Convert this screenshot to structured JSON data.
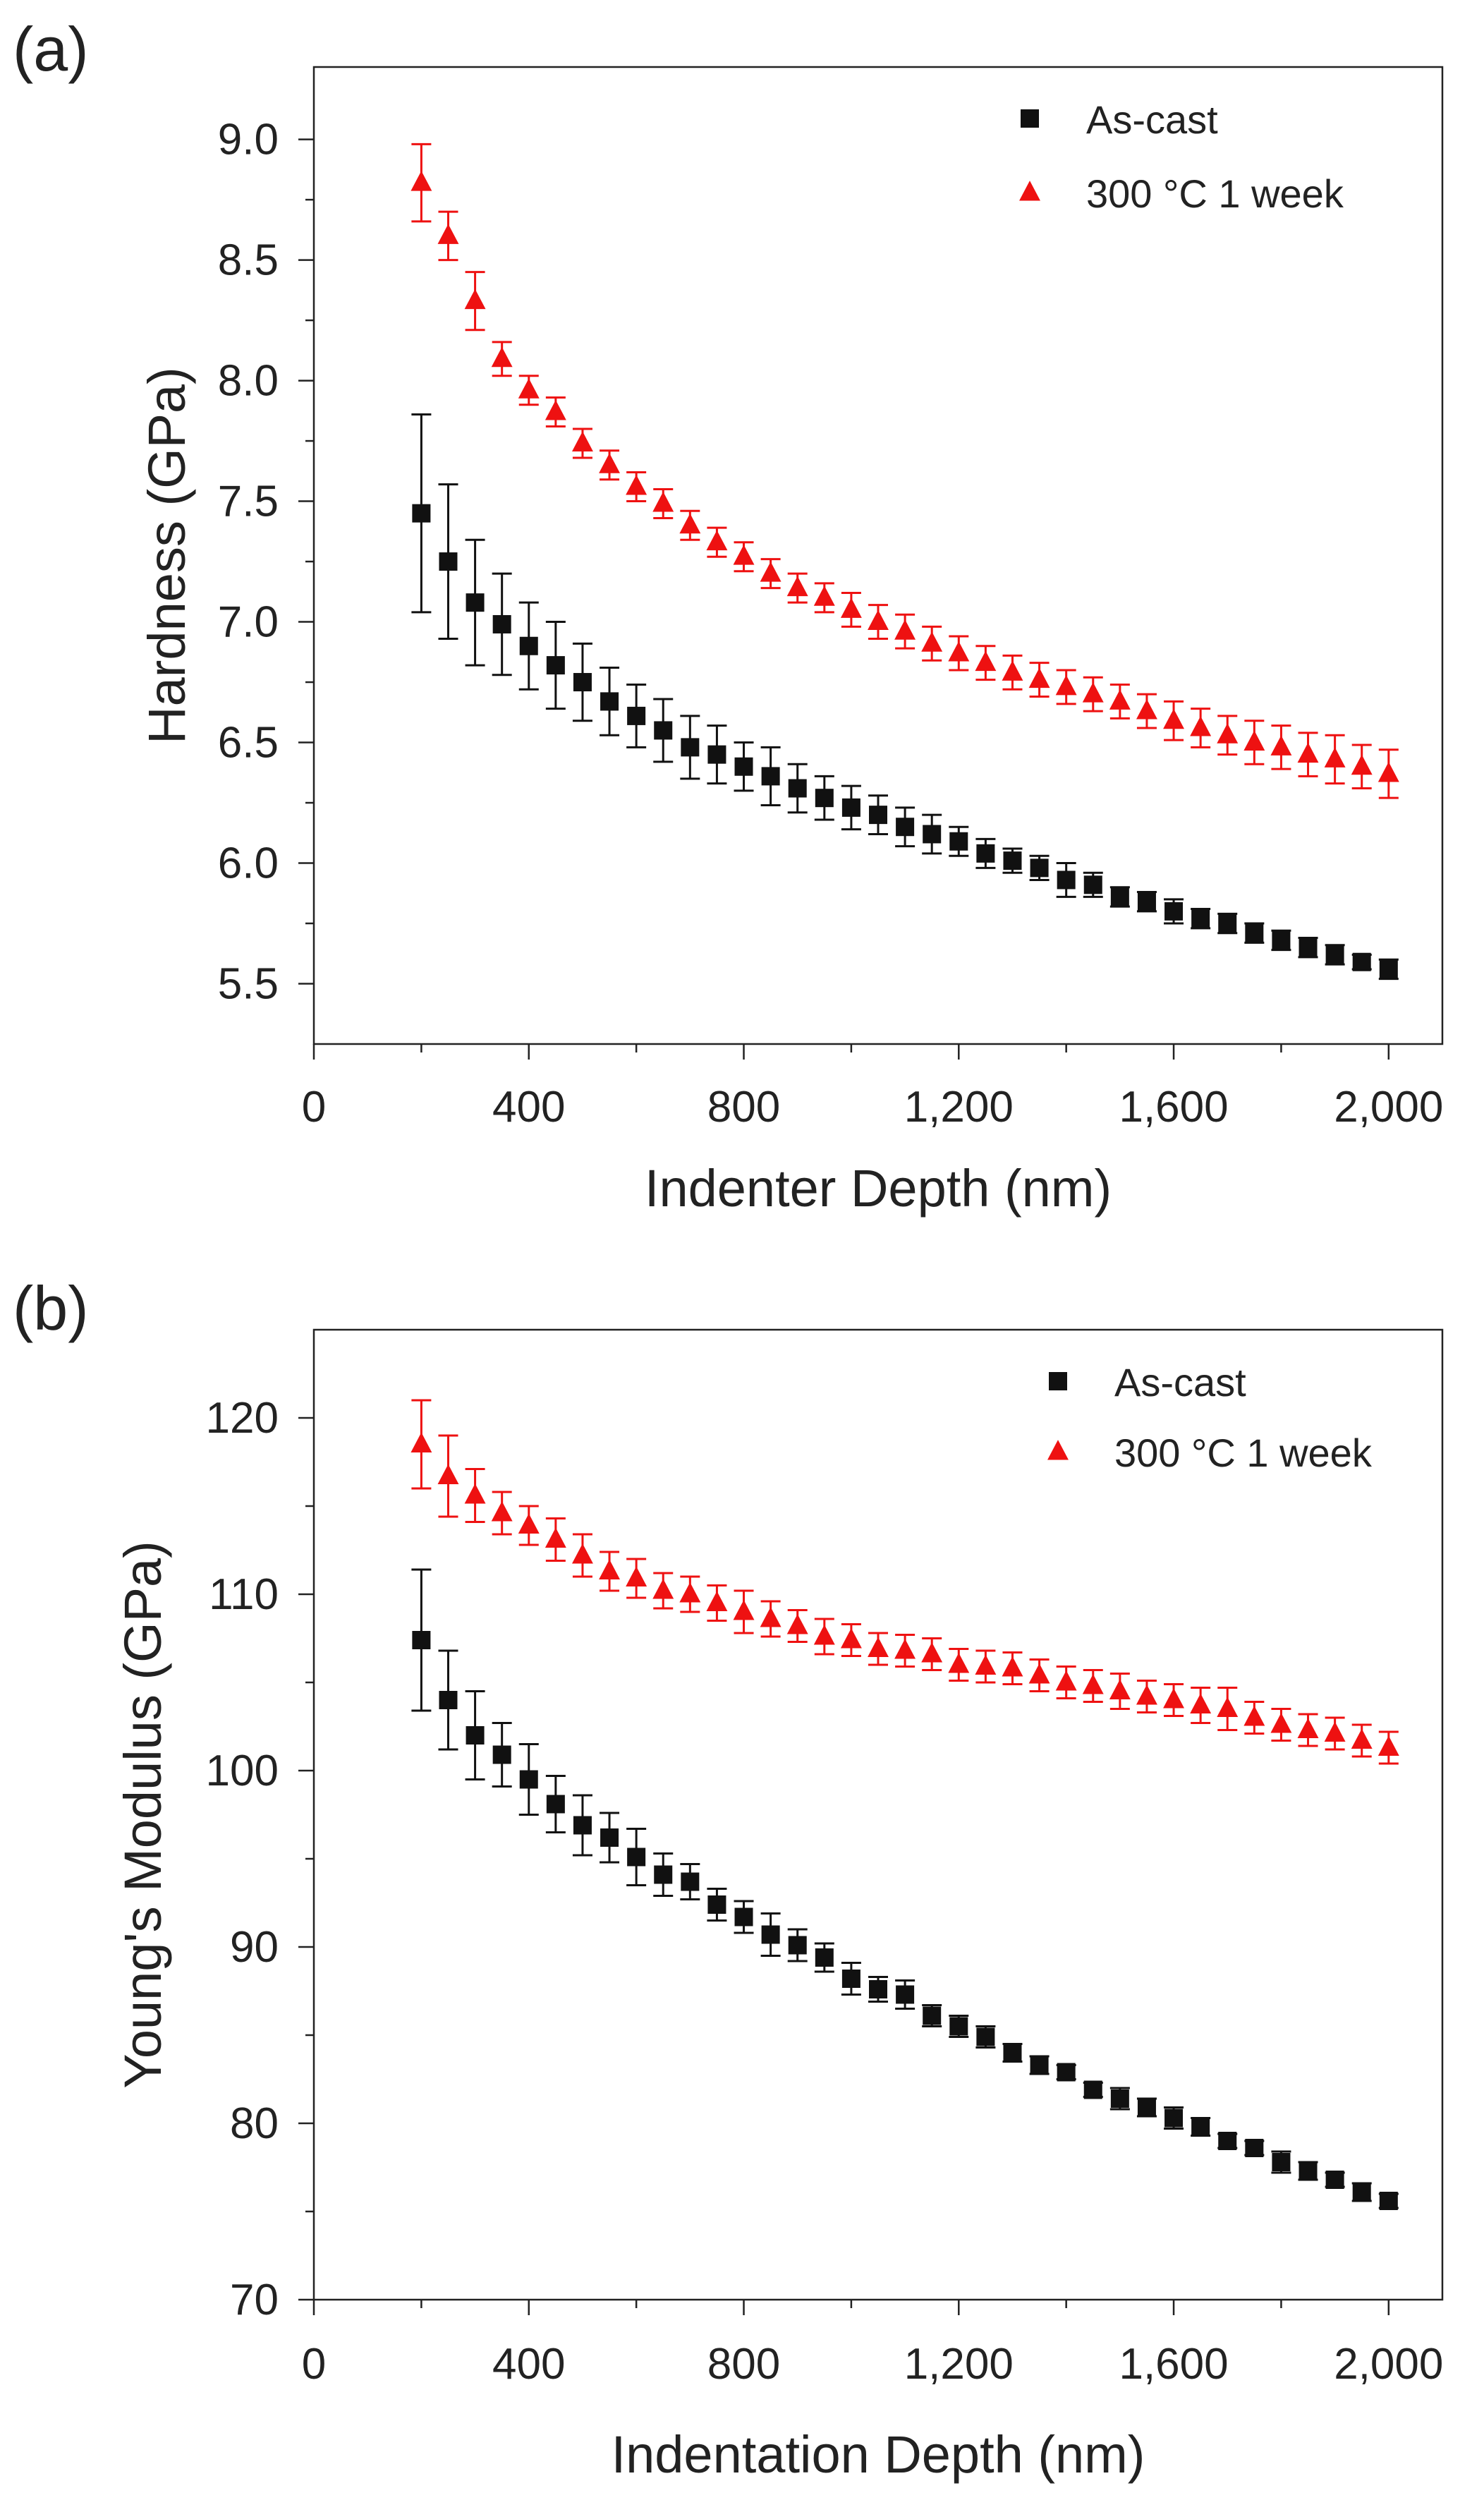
{
  "panel_labels": [
    "(a)",
    "(b)"
  ],
  "colors": {
    "as_cast": "#111111",
    "treated": "#ee1111"
  },
  "chart_data": [
    {
      "type": "scatter",
      "title": "",
      "xlabel": "Indenter Depth (nm)",
      "ylabel": "Hardness (GPa)",
      "xlim": [
        0,
        2100
      ],
      "ylim": [
        5.25,
        9.3
      ],
      "xticks": [
        0,
        400,
        800,
        1200,
        1600,
        2000
      ],
      "xtick_labels": [
        "0",
        "400",
        "800",
        "1,200",
        "1,600",
        "2,000"
      ],
      "yticks": [
        5.5,
        6.0,
        6.5,
        7.0,
        7.5,
        8.0,
        8.5,
        9.0
      ],
      "ytick_labels": [
        "5.5",
        "6.0",
        "6.5",
        "7.0",
        "7.5",
        "8.0",
        "8.5",
        "9.0"
      ],
      "legend_position": "top-right",
      "x": [
        200,
        250,
        300,
        350,
        400,
        450,
        500,
        550,
        600,
        650,
        700,
        750,
        800,
        850,
        900,
        950,
        1000,
        1050,
        1100,
        1150,
        1200,
        1250,
        1300,
        1350,
        1400,
        1450,
        1500,
        1550,
        1600,
        1650,
        1700,
        1750,
        1800,
        1850,
        1900,
        1950,
        2000
      ],
      "series": [
        {
          "name": "As-cast",
          "marker": "square",
          "values": [
            7.45,
            7.25,
            7.08,
            6.99,
            6.9,
            6.82,
            6.75,
            6.67,
            6.61,
            6.55,
            6.48,
            6.45,
            6.4,
            6.36,
            6.31,
            6.27,
            6.23,
            6.2,
            6.15,
            6.12,
            6.09,
            6.04,
            6.01,
            5.98,
            5.93,
            5.91,
            5.86,
            5.84,
            5.8,
            5.77,
            5.75,
            5.71,
            5.68,
            5.65,
            5.62,
            5.59,
            5.56
          ],
          "errors": [
            0.41,
            0.32,
            0.26,
            0.21,
            0.18,
            0.18,
            0.16,
            0.14,
            0.13,
            0.13,
            0.13,
            0.12,
            0.1,
            0.12,
            0.1,
            0.09,
            0.09,
            0.08,
            0.08,
            0.08,
            0.06,
            0.06,
            0.05,
            0.05,
            0.07,
            0.05,
            0.04,
            0.04,
            0.05,
            0.04,
            0.04,
            0.04,
            0.04,
            0.04,
            0.04,
            0.03,
            0.04
          ]
        },
        {
          "name": "300 °C 1 week",
          "marker": "triangle",
          "values": [
            8.82,
            8.6,
            8.33,
            8.09,
            7.96,
            7.87,
            7.74,
            7.65,
            7.56,
            7.49,
            7.4,
            7.33,
            7.27,
            7.2,
            7.14,
            7.1,
            7.05,
            7.0,
            6.96,
            6.91,
            6.87,
            6.83,
            6.79,
            6.76,
            6.73,
            6.7,
            6.67,
            6.63,
            6.59,
            6.56,
            6.53,
            6.5,
            6.48,
            6.45,
            6.43,
            6.4,
            6.37
          ]
        }
      ],
      "treated_errors": [
        0.16,
        0.1,
        0.12,
        0.07,
        0.06,
        0.06,
        0.06,
        0.06,
        0.06,
        0.06,
        0.06,
        0.06,
        0.06,
        0.06,
        0.06,
        0.06,
        0.07,
        0.07,
        0.07,
        0.07,
        0.07,
        0.07,
        0.07,
        0.07,
        0.07,
        0.07,
        0.07,
        0.07,
        0.08,
        0.08,
        0.08,
        0.09,
        0.09,
        0.09,
        0.1,
        0.09,
        0.1
      ]
    },
    {
      "type": "scatter",
      "title": "",
      "xlabel": "Indentation Depth (nm)",
      "ylabel": "Young's Modulus (GPa)",
      "xlim": [
        0,
        2100
      ],
      "ylim": [
        70,
        125
      ],
      "xticks": [
        0,
        400,
        800,
        1200,
        1600,
        2000
      ],
      "xtick_labels": [
        "0",
        "400",
        "800",
        "1,200",
        "1,600",
        "2,000"
      ],
      "yticks": [
        70,
        80,
        90,
        100,
        110,
        120
      ],
      "ytick_labels": [
        "70",
        "80",
        "90",
        "100",
        "110",
        "120"
      ],
      "legend_position": "top-right",
      "x": [
        200,
        250,
        300,
        350,
        400,
        450,
        500,
        550,
        600,
        650,
        700,
        750,
        800,
        850,
        900,
        950,
        1000,
        1050,
        1100,
        1150,
        1200,
        1250,
        1300,
        1350,
        1400,
        1450,
        1500,
        1550,
        1600,
        1650,
        1700,
        1750,
        1800,
        1850,
        1900,
        1950,
        2000
      ],
      "series": [
        {
          "name": "As-cast",
          "marker": "square",
          "values": [
            107.4,
            104.0,
            102.0,
            100.9,
            99.5,
            98.1,
            96.9,
            96.2,
            95.1,
            94.1,
            93.7,
            92.4,
            91.7,
            90.7,
            90.1,
            89.4,
            88.2,
            87.6,
            87.3,
            86.1,
            85.5,
            84.9,
            84.0,
            83.3,
            82.9,
            81.9,
            81.4,
            80.9,
            80.3,
            79.8,
            79.0,
            78.6,
            77.8,
            77.3,
            76.8,
            76.1,
            75.6
          ]
        },
        {
          "name": "300 °C 1 week",
          "marker": "triangle",
          "values": [
            118.5,
            116.7,
            115.6,
            114.6,
            113.9,
            113.1,
            112.2,
            111.3,
            110.9,
            110.2,
            110.0,
            109.5,
            109.0,
            108.6,
            108.2,
            107.6,
            107.4,
            106.9,
            106.8,
            106.6,
            106.0,
            105.9,
            105.8,
            105.4,
            105.0,
            104.8,
            104.5,
            104.2,
            104.0,
            103.7,
            103.5,
            103.0,
            102.6,
            102.3,
            102.1,
            101.7,
            101.3
          ]
        }
      ],
      "as_cast_errors": [
        4.0,
        2.8,
        2.5,
        1.8,
        2.0,
        1.6,
        1.7,
        1.4,
        1.6,
        1.2,
        1.0,
        0.9,
        0.9,
        1.2,
        0.9,
        0.8,
        0.9,
        0.7,
        0.8,
        0.6,
        0.6,
        0.6,
        0.5,
        0.5,
        0.4,
        0.4,
        0.6,
        0.5,
        0.6,
        0.5,
        0.4,
        0.4,
        0.6,
        0.5,
        0.4,
        0.5,
        0.4
      ],
      "treated_errors": [
        2.5,
        2.3,
        1.5,
        1.2,
        1.1,
        1.2,
        1.2,
        1.1,
        1.1,
        1.0,
        1.0,
        1.0,
        1.2,
        1.0,
        0.9,
        1.0,
        0.9,
        0.9,
        0.9,
        0.9,
        0.9,
        0.9,
        0.9,
        0.9,
        0.9,
        0.9,
        1.0,
        0.9,
        0.9,
        1.0,
        1.2,
        0.9,
        0.9,
        0.9,
        0.9,
        0.9,
        0.9
      ]
    }
  ]
}
